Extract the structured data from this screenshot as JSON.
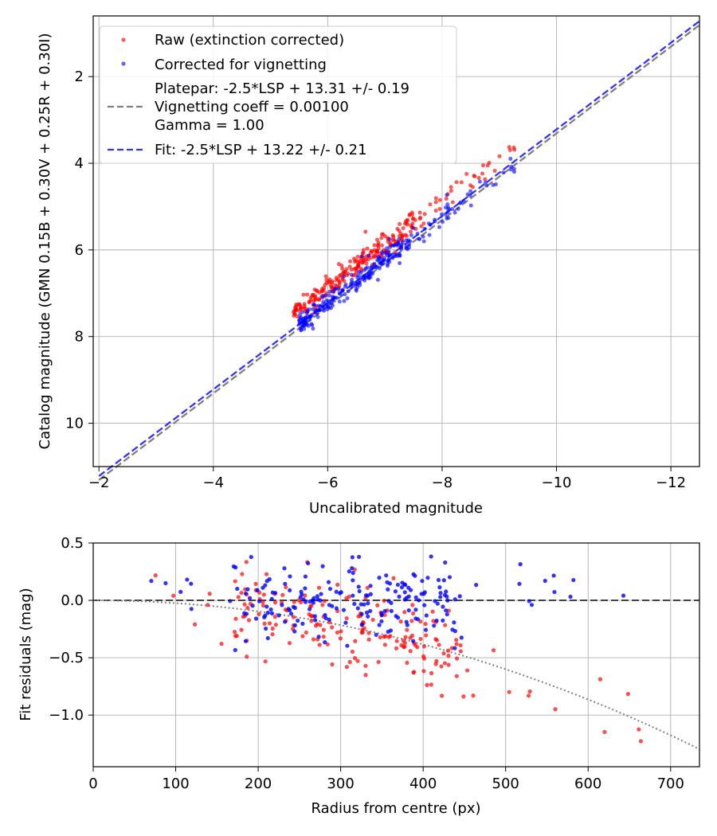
{
  "chart_data": [
    {
      "type": "scatter",
      "xlabel": "Uncalibrated magnitude",
      "ylabel": "Catalog magnitude (GMN 0.15B + 0.30V + 0.25R + 0.30I)",
      "xlim": [
        -1.9,
        -12.5
      ],
      "ylim": [
        11.0,
        0.6
      ],
      "x_ticks": [
        -2,
        -4,
        -6,
        -8,
        -10,
        -12
      ],
      "x_tick_labels": [
        "−2",
        "−4",
        "−6",
        "−8",
        "−10",
        "−12"
      ],
      "y_ticks": [
        2,
        4,
        6,
        8,
        10
      ],
      "y_tick_labels": [
        "2",
        "4",
        "6",
        "8",
        "10"
      ],
      "grid": true,
      "legend_position": "top-left",
      "legend": [
        {
          "label": "Raw (extinction corrected)",
          "kind": "marker",
          "color": "#ff0000"
        },
        {
          "label": "Corrected for vignetting",
          "kind": "marker",
          "color": "#0000ff"
        },
        {
          "label": "Platepar: -2.5*LSP + 13.31 +/- 0.19",
          "kind": "line",
          "color": "#808080"
        },
        {
          "label": "Vignetting coeff = 0.00100",
          "kind": "none"
        },
        {
          "label": "Gamma = 1.00",
          "kind": "none"
        },
        {
          "label": "Fit: -2.5*LSP + 13.22 +/- 0.21",
          "kind": "line",
          "color": "#3333ff"
        }
      ],
      "lines": [
        {
          "name": "Platepar",
          "slope": 1.0,
          "intercept": 13.31,
          "color": "#808080",
          "style": "dashed"
        },
        {
          "name": "Fit",
          "slope": 1.0,
          "intercept": 13.22,
          "color": "#3333ff",
          "style": "dashed"
        }
      ],
      "series": [
        {
          "name": "Raw (extinction corrected)",
          "color": "#ff0000",
          "n": 260,
          "x_range": [
            -5.2,
            -9.3
          ],
          "offset_range": [
            -0.55,
            0.0
          ],
          "mean_offset": -0.35,
          "scatter_sd": 0.15
        },
        {
          "name": "Corrected for vignetting",
          "color": "#0000ff",
          "n": 260,
          "x_range": [
            -5.5,
            -9.3
          ],
          "offset_range": [
            -0.2,
            0.25
          ],
          "mean_offset": 0.0,
          "scatter_sd": 0.13
        }
      ]
    },
    {
      "type": "scatter",
      "xlabel": "Radius from centre (px)",
      "ylabel": "Fit residuals (mag)",
      "xlim": [
        0,
        735
      ],
      "ylim": [
        -1.45,
        0.5
      ],
      "x_ticks": [
        0,
        100,
        200,
        300,
        400,
        500,
        600,
        700
      ],
      "x_tick_labels": [
        "0",
        "100",
        "200",
        "300",
        "400",
        "500",
        "600",
        "700"
      ],
      "y_ticks": [
        0.5,
        0.0,
        -0.5,
        -1.0
      ],
      "y_tick_labels": [
        "0.5",
        "0.0",
        "−0.5",
        "−1.0"
      ],
      "grid": true,
      "reference_line": {
        "y": 0.0,
        "color": "#444444",
        "style": "dashed"
      },
      "model_curve": {
        "name": "vignetting model",
        "coeff": 0.001,
        "color": "#808080",
        "style": "dotted",
        "x_start": 70,
        "x_end": 735
      },
      "series": [
        {
          "name": "Raw (extinction corrected)",
          "color": "#ff0000",
          "n": 200,
          "radius_range": [
            70,
            672
          ],
          "trend": "quadratic-vignetting",
          "scatter_sd": 0.17
        },
        {
          "name": "Corrected for vignetting",
          "color": "#0000ff",
          "n": 200,
          "radius_range": [
            70,
            672
          ],
          "trend": "flat",
          "scatter_sd": 0.17
        }
      ]
    }
  ]
}
